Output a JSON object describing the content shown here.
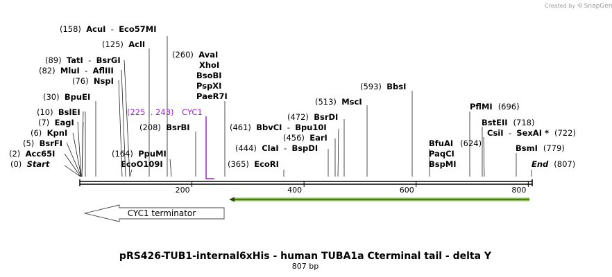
{
  "credit": {
    "prefix": "Created by",
    "brand": "SnapGene"
  },
  "title": "pRS426-TUB1-internal6xHis - human TUBA1a Cterminal tail - delta Y",
  "length_label": "807 bp",
  "axis": {
    "start": 0,
    "end": 807,
    "ticks": [
      200,
      400,
      600,
      800
    ]
  },
  "labels": [
    {
      "key": "start",
      "pos": "(0)",
      "parts": [
        {
          "t": "Start",
          "s": "em"
        }
      ]
    },
    {
      "key": "acc65i",
      "pos": "(2)",
      "parts": [
        {
          "t": "Acc65I",
          "s": "nm"
        }
      ]
    },
    {
      "key": "bsrfi",
      "pos": "(5)",
      "parts": [
        {
          "t": "BsrFI",
          "s": "nm"
        }
      ]
    },
    {
      "key": "kpni",
      "pos": "(6)",
      "parts": [
        {
          "t": "KpnI",
          "s": "nm"
        }
      ]
    },
    {
      "key": "eagi",
      "pos": "(7)",
      "parts": [
        {
          "t": "EagI",
          "s": "nm"
        }
      ]
    },
    {
      "key": "bslei",
      "pos": "(10)",
      "parts": [
        {
          "t": "BslEI",
          "s": "nm"
        }
      ]
    },
    {
      "key": "bpuei",
      "pos": "(30)",
      "parts": [
        {
          "t": "BpuEI",
          "s": "nm"
        }
      ]
    },
    {
      "key": "nspi",
      "pos": "(76)",
      "parts": [
        {
          "t": "NspI",
          "s": "nm"
        }
      ]
    },
    {
      "key": "mlui",
      "pos": "(82)",
      "parts": [
        {
          "t": "MluI",
          "s": "nm"
        },
        {
          "t": "  -  ",
          "s": ""
        },
        {
          "t": "AflIII",
          "s": "nm"
        }
      ]
    },
    {
      "key": "tati",
      "pos": "(89)",
      "parts": [
        {
          "t": "TatI",
          "s": "nm"
        },
        {
          "t": "  -  ",
          "s": ""
        },
        {
          "t": "BsrGI",
          "s": "nm"
        }
      ]
    },
    {
      "key": "acli",
      "pos": "(125)",
      "parts": [
        {
          "t": "AclI",
          "s": "nm"
        }
      ]
    },
    {
      "key": "acui",
      "pos": "(158)",
      "parts": [
        {
          "t": "AcuI",
          "s": "nm"
        },
        {
          "t": "  -  ",
          "s": ""
        },
        {
          "t": "Eco57MI",
          "s": "nm"
        }
      ]
    },
    {
      "key": "ecoo109i",
      "pos": "",
      "parts": [
        {
          "t": "EcoO109I",
          "s": "nm"
        }
      ]
    },
    {
      "key": "ppumi",
      "pos": "(164)",
      "parts": [
        {
          "t": "PpuMI",
          "s": "nm"
        }
      ]
    },
    {
      "key": "bsrbi",
      "pos": "(208)",
      "parts": [
        {
          "t": "BsrBI",
          "s": "nm"
        }
      ]
    },
    {
      "key": "paer7i",
      "pos": "",
      "parts": [
        {
          "t": "PaeR7I",
          "s": "nm"
        }
      ]
    },
    {
      "key": "pspxi",
      "pos": "",
      "parts": [
        {
          "t": "PspXI",
          "s": "nm"
        }
      ]
    },
    {
      "key": "bsobi",
      "pos": "",
      "parts": [
        {
          "t": "BsoBI",
          "s": "nm"
        }
      ]
    },
    {
      "key": "xhoi",
      "pos": "",
      "parts": [
        {
          "t": "XhoI",
          "s": "nm"
        }
      ]
    },
    {
      "key": "avai",
      "pos": "(260)",
      "parts": [
        {
          "t": "AvaI",
          "s": "nm"
        }
      ]
    },
    {
      "key": "ecori",
      "pos": "(365)",
      "parts": [
        {
          "t": "EcoRI",
          "s": "nm"
        }
      ]
    },
    {
      "key": "clai",
      "pos": "(444)",
      "parts": [
        {
          "t": "ClaI",
          "s": "nm"
        },
        {
          "t": "  -  ",
          "s": ""
        },
        {
          "t": "BspDI",
          "s": "nm"
        }
      ]
    },
    {
      "key": "eari",
      "pos": "(456)",
      "parts": [
        {
          "t": "EarI",
          "s": "nm"
        }
      ]
    },
    {
      "key": "bbvci",
      "pos": "(461)",
      "parts": [
        {
          "t": "BbvCI",
          "s": "nm"
        },
        {
          "t": "  -  ",
          "s": ""
        },
        {
          "t": "Bpu10I",
          "s": "nm"
        }
      ]
    },
    {
      "key": "bsrdi",
      "pos": "(472)",
      "parts": [
        {
          "t": "BsrDI",
          "s": "nm"
        }
      ]
    },
    {
      "key": "msci",
      "pos": "(513)",
      "parts": [
        {
          "t": "MscI",
          "s": "nm"
        }
      ]
    },
    {
      "key": "bbsi",
      "pos": "(593)",
      "parts": [
        {
          "t": "BbsI",
          "s": "nm"
        }
      ]
    },
    {
      "key": "bspmi",
      "pos": "",
      "parts": [
        {
          "t": "BspMI",
          "s": "nm"
        }
      ]
    },
    {
      "key": "paqci",
      "pos": "",
      "parts": [
        {
          "t": "PaqCI",
          "s": "nm"
        }
      ]
    },
    {
      "key": "bfuai",
      "pos": "(624)",
      "parts": [
        {
          "t": "BfuAI",
          "s": "nm"
        }
      ]
    },
    {
      "key": "pflmi",
      "pos": "(696)",
      "parts": [
        {
          "t": "PflMI",
          "s": "nm"
        }
      ]
    },
    {
      "key": "bsteii",
      "pos": "(718)",
      "parts": [
        {
          "t": "BstEII",
          "s": "nm"
        }
      ]
    },
    {
      "key": "csii",
      "pos": "(722)",
      "parts": [
        {
          "t": "CsiI",
          "s": "nm"
        },
        {
          "t": "  -  ",
          "s": ""
        },
        {
          "t": "SexAI *",
          "s": "nm"
        }
      ]
    },
    {
      "key": "bsmi",
      "pos": "(779)",
      "parts": [
        {
          "t": "BsmI",
          "s": "nm"
        }
      ]
    },
    {
      "key": "end",
      "pos": "(807)",
      "parts": [
        {
          "t": "End",
          "s": "em"
        }
      ]
    }
  ],
  "primer": {
    "range": "(225 .. 243)",
    "name": "CYC1"
  },
  "features": [
    {
      "name": "CYC1 terminator",
      "direction": "reverse"
    },
    {
      "name": "",
      "direction": "reverse",
      "color": "#8bc34a"
    }
  ],
  "colors": {
    "primer": "#a020d0",
    "orf": "#8bc34a"
  }
}
